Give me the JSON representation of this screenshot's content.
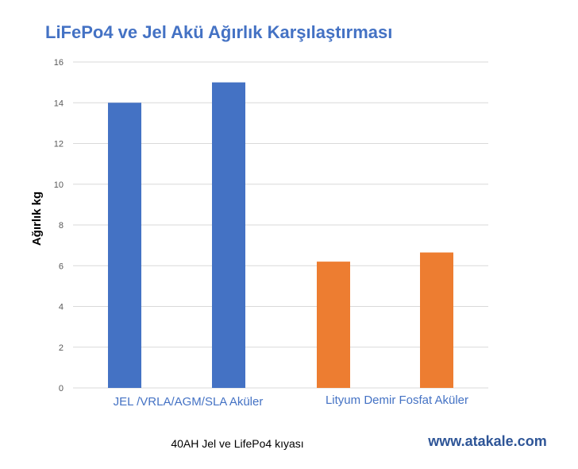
{
  "chart_data": {
    "type": "bar",
    "title": "LiFePo4 ve Jel Akü Ağırlık Karşılaştırması",
    "ylabel": "Ağırlık kg",
    "xlabel": "40AH Jel ve LifePo4 kıyası",
    "ylim": [
      0,
      16
    ],
    "yticks": [
      0,
      2,
      4,
      6,
      8,
      10,
      12,
      14,
      16
    ],
    "grid": true,
    "category_groups": [
      "JEL /VRLA/AGM/SLA Aküler",
      "Lityum Demir Fosfat Aküler"
    ],
    "series": [
      {
        "group": 0,
        "values": [
          14,
          15
        ],
        "color": "#4472C4"
      },
      {
        "group": 1,
        "values": [
          6.2,
          6.65
        ],
        "color": "#ED7D31"
      }
    ]
  },
  "watermark": "www.atakale.com",
  "colors": {
    "title": "#4472C4",
    "grid": "#d9d9d9",
    "blue": "#4472C4",
    "orange": "#ED7D31"
  }
}
